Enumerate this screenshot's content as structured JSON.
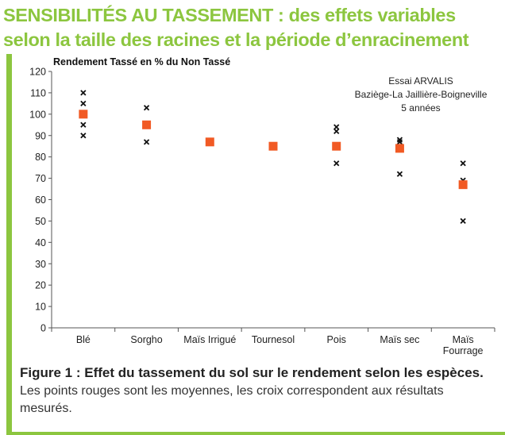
{
  "header": {
    "title_line1": "SENSIBILITÉS AU TASSEMENT : des effets variables",
    "title_line2": "selon la taille des racines et la période d’enracinement"
  },
  "chart_data": {
    "type": "scatter",
    "ylabel": "Rendement Tassé en % du Non Tassé",
    "ylim": [
      0,
      120
    ],
    "yticks": [
      0,
      10,
      20,
      30,
      40,
      50,
      60,
      70,
      80,
      90,
      100,
      110,
      120
    ],
    "grid": false,
    "legend": "none",
    "annotation": [
      "Essai ARVALIS",
      "Baziège-La Jaillière-Boigneville",
      "5 années"
    ],
    "categories": [
      "Blé",
      "Sorgho",
      "Maïs Irrigué",
      "Tournesol",
      "Pois",
      "Maïs sec",
      "Maïs Fourrage"
    ],
    "category_lines": [
      [
        "Blé"
      ],
      [
        "Sorgho"
      ],
      [
        "Maïs Irrigué"
      ],
      [
        "Tournesol"
      ],
      [
        "Pois"
      ],
      [
        "Maïs sec"
      ],
      [
        "Maïs",
        "Fourrage"
      ]
    ],
    "means": [
      100,
      95,
      87,
      85,
      85,
      84,
      67
    ],
    "measured": [
      [
        110,
        105,
        100,
        95,
        90
      ],
      [
        103,
        87
      ],
      [],
      [],
      [
        94,
        92,
        77
      ],
      [
        88,
        87,
        72
      ],
      [
        77,
        69,
        50
      ]
    ],
    "colors": {
      "mean": "#f15a24",
      "cross": "#111111",
      "axis": "#555555"
    }
  },
  "caption": {
    "figure": "Figure 1 : Effet du tassement du sol sur le rendement selon les espèces.",
    "description": "Les points rouges sont les moyennes, les croix correspondent aux résultats mesurés."
  }
}
